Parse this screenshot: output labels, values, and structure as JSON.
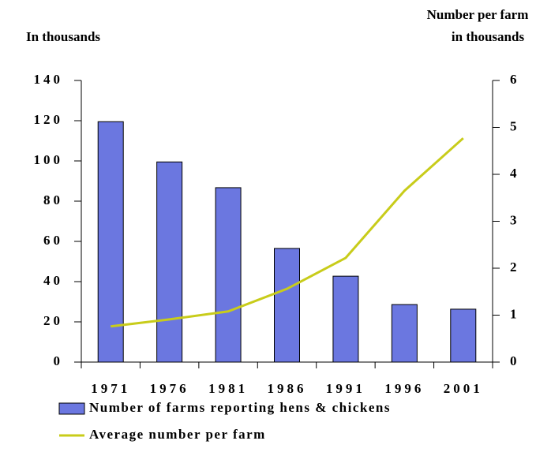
{
  "chart_data": {
    "type": "bar-line",
    "ylabel": "In thousands",
    "y2label": [
      "Number per farm",
      "in thousands"
    ],
    "categories": [
      "1971",
      "1976",
      "1981",
      "1986",
      "1991",
      "1996",
      "2001"
    ],
    "series": [
      {
        "name": "Number of farms reporting hens & chickens",
        "type": "bar",
        "color": "#6b77e0",
        "values": [
          119.5,
          99.5,
          86.7,
          56.5,
          42.7,
          28.6,
          26.3
        ]
      },
      {
        "name": "Average number per farm",
        "type": "line",
        "axis": "y2",
        "color": "#c8cc1a",
        "values": [
          0.76,
          0.91,
          1.08,
          1.56,
          2.22,
          3.65,
          4.77
        ]
      }
    ],
    "ylim": [
      0,
      140
    ],
    "yticks": [
      0,
      20,
      40,
      60,
      80,
      100,
      120,
      140
    ],
    "y2lim": [
      0,
      6
    ],
    "y2ticks": [
      0,
      1,
      2,
      3,
      4,
      5,
      6
    ],
    "grid": false
  }
}
